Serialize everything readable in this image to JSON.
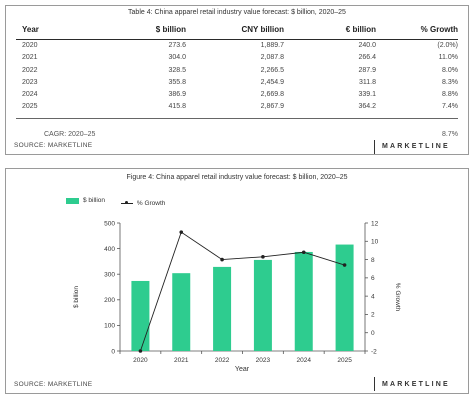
{
  "table": {
    "caption": "Table 4: China apparel retail industry value forecast: $ billion, 2020–25",
    "headers": [
      "Year",
      "$ billion",
      "CNY billion",
      "€ billion",
      "% Growth"
    ],
    "rows": [
      [
        "2020",
        "273.6",
        "1,889.7",
        "240.0",
        "(2.0%)"
      ],
      [
        "2021",
        "304.0",
        "2,087.8",
        "266.4",
        "11.0%"
      ],
      [
        "2022",
        "328.5",
        "2,266.5",
        "287.9",
        "8.0%"
      ],
      [
        "2023",
        "355.8",
        "2,454.9",
        "311.8",
        "8.3%"
      ],
      [
        "2024",
        "386.9",
        "2,669.8",
        "339.1",
        "8.8%"
      ],
      [
        "2025",
        "415.8",
        "2,867.9",
        "364.2",
        "7.4%"
      ]
    ],
    "cagr_label": "CAGR: 2020–25",
    "cagr_value": "8.7%",
    "source": "SOURCE: MARKETLINE",
    "brand": "MARKETLINE"
  },
  "figure": {
    "caption": "Figure 4: China apparel retail industry value forecast: $ billion, 2020–25",
    "source": "SOURCE: MARKETLINE",
    "brand": "MARKETLINE",
    "bar_color": "#2ecc8f",
    "line_color": "#222222"
  },
  "chart_data": {
    "type": "bar",
    "categories": [
      "2020",
      "2021",
      "2022",
      "2023",
      "2024",
      "2025"
    ],
    "series": [
      {
        "name": "$ billion",
        "type": "bar",
        "axis": "left",
        "values": [
          273.6,
          304.0,
          328.5,
          355.8,
          386.9,
          415.8
        ]
      },
      {
        "name": "% Growth",
        "type": "line",
        "axis": "right",
        "values": [
          -2.0,
          11.0,
          8.0,
          8.3,
          8.8,
          7.4
        ]
      }
    ],
    "xlabel": "Year",
    "ylabel": "$ billion",
    "y2label": "% Growth",
    "ylim": [
      0,
      500
    ],
    "yticks": [
      "0",
      "100",
      "200",
      "300",
      "400",
      "500"
    ],
    "y2lim": [
      -2,
      12
    ],
    "y2ticks": [
      "-2",
      "0",
      "2",
      "4",
      "6",
      "8",
      "10",
      "12"
    ],
    "legend": "top-left",
    "grid": false
  }
}
